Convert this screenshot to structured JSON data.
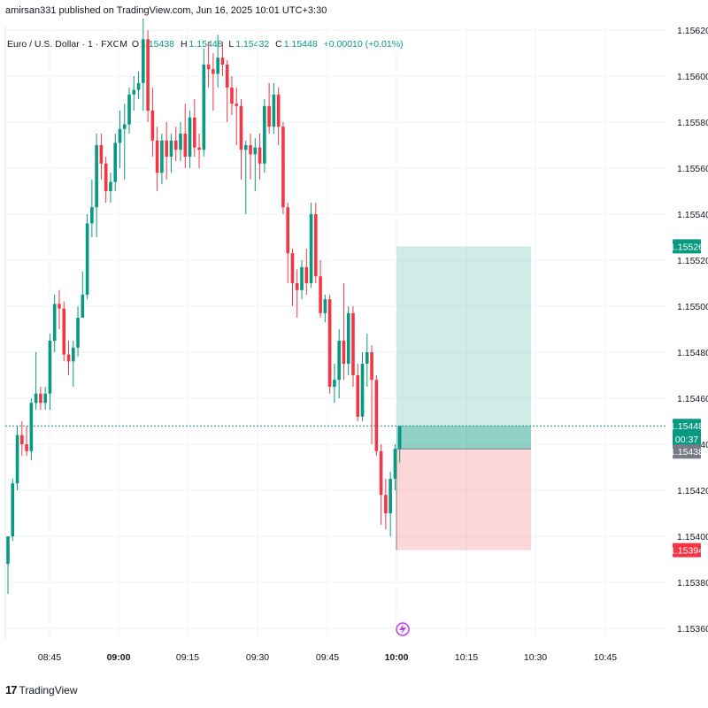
{
  "header": {
    "published": "amirsan331 published on TradingView.com, Jun 16, 2025 10:01 UTC+3:30"
  },
  "symbol": {
    "name": "Euro / U.S. Dollar · 1 · FXCM",
    "open_label": "O",
    "open": "1.15438",
    "high_label": "H",
    "high": "1.15448",
    "low_label": "L",
    "low": "1.15432",
    "close_label": "C",
    "close": "1.15448",
    "change": "+0.00010 (+0.01%)"
  },
  "brand": {
    "logo": "17",
    "name": "TradingView"
  },
  "colors": {
    "up": "#089981",
    "down": "#f23645",
    "grid": "#f0f3fa",
    "axis_text": "#131722",
    "target_zone": "rgba(8,153,129,0.19)",
    "stop_zone": "rgba(242,54,69,0.20)",
    "filled_zone": "rgba(8,153,129,0.32)",
    "open_tag": "#787b86"
  },
  "chart_data": {
    "type": "candlestick",
    "y_ticks": [
      "1.15620",
      "1.15600",
      "1.15580",
      "1.15560",
      "1.15540",
      "1.15520",
      "1.15500",
      "1.15480",
      "1.15460",
      "1.15440",
      "1.15420",
      "1.15400",
      "1.15380",
      "1.15360"
    ],
    "x_ticks": [
      "08:45",
      "09:00",
      "09:15",
      "09:30",
      "09:45",
      "10:00",
      "10:15",
      "10:30",
      "10:45"
    ],
    "bold_x_ticks": [
      "09:00",
      "10:00"
    ],
    "price_labels": {
      "target": "1.15526",
      "current": "1.15448",
      "countdown": "00:37",
      "open": "1.15438",
      "stop": "1.15394"
    },
    "position": {
      "type": "long",
      "entry": 1.15438,
      "target": 1.15526,
      "stop": 1.15394,
      "start_time": "10:00",
      "end_time": "10:29"
    },
    "candles": [
      {
        "o": 1.15388,
        "h": 1.154,
        "l": 1.15375,
        "c": 1.154
      },
      {
        "o": 1.154,
        "h": 1.15425,
        "l": 1.15398,
        "c": 1.15423
      },
      {
        "o": 1.15423,
        "h": 1.15448,
        "l": 1.1542,
        "c": 1.15444
      },
      {
        "o": 1.15444,
        "h": 1.1545,
        "l": 1.15435,
        "c": 1.1544
      },
      {
        "o": 1.1544,
        "h": 1.15448,
        "l": 1.15435,
        "c": 1.15437
      },
      {
        "o": 1.15437,
        "h": 1.1546,
        "l": 1.15433,
        "c": 1.15458
      },
      {
        "o": 1.15458,
        "h": 1.1548,
        "l": 1.15455,
        "c": 1.15462
      },
      {
        "o": 1.15462,
        "h": 1.15465,
        "l": 1.15455,
        "c": 1.15458
      },
      {
        "o": 1.15458,
        "h": 1.15465,
        "l": 1.15455,
        "c": 1.15462
      },
      {
        "o": 1.15462,
        "h": 1.15488,
        "l": 1.15455,
        "c": 1.15485
      },
      {
        "o": 1.15485,
        "h": 1.15505,
        "l": 1.1548,
        "c": 1.15501
      },
      {
        "o": 1.15501,
        "h": 1.15507,
        "l": 1.1549,
        "c": 1.15499
      },
      {
        "o": 1.15499,
        "h": 1.15502,
        "l": 1.15476,
        "c": 1.15479
      },
      {
        "o": 1.15479,
        "h": 1.15485,
        "l": 1.1547,
        "c": 1.15476
      },
      {
        "o": 1.15476,
        "h": 1.15485,
        "l": 1.15465,
        "c": 1.15482
      },
      {
        "o": 1.15482,
        "h": 1.155,
        "l": 1.15478,
        "c": 1.15495
      },
      {
        "o": 1.15495,
        "h": 1.15515,
        "l": 1.15495,
        "c": 1.15505
      },
      {
        "o": 1.15505,
        "h": 1.1554,
        "l": 1.15503,
        "c": 1.15536
      },
      {
        "o": 1.15536,
        "h": 1.15555,
        "l": 1.1553,
        "c": 1.15543
      },
      {
        "o": 1.15543,
        "h": 1.15575,
        "l": 1.1553,
        "c": 1.1557
      },
      {
        "o": 1.1557,
        "h": 1.15575,
        "l": 1.15555,
        "c": 1.15562
      },
      {
        "o": 1.15562,
        "h": 1.15565,
        "l": 1.15545,
        "c": 1.1555
      },
      {
        "o": 1.1555,
        "h": 1.15558,
        "l": 1.15545,
        "c": 1.15554
      },
      {
        "o": 1.15554,
        "h": 1.15575,
        "l": 1.1555,
        "c": 1.15571
      },
      {
        "o": 1.15571,
        "h": 1.15585,
        "l": 1.1556,
        "c": 1.15577
      },
      {
        "o": 1.15577,
        "h": 1.15588,
        "l": 1.15555,
        "c": 1.15579
      },
      {
        "o": 1.15579,
        "h": 1.15595,
        "l": 1.15575,
        "c": 1.15592
      },
      {
        "o": 1.15592,
        "h": 1.156,
        "l": 1.15585,
        "c": 1.15594
      },
      {
        "o": 1.15594,
        "h": 1.15602,
        "l": 1.1559,
        "c": 1.15597
      },
      {
        "o": 1.15597,
        "h": 1.15625,
        "l": 1.15585,
        "c": 1.15616
      },
      {
        "o": 1.15616,
        "h": 1.1562,
        "l": 1.1558,
        "c": 1.15585
      },
      {
        "o": 1.15585,
        "h": 1.15595,
        "l": 1.15565,
        "c": 1.15572
      },
      {
        "o": 1.15572,
        "h": 1.15578,
        "l": 1.1555,
        "c": 1.15558
      },
      {
        "o": 1.15558,
        "h": 1.15575,
        "l": 1.15553,
        "c": 1.15572
      },
      {
        "o": 1.15572,
        "h": 1.1558,
        "l": 1.15555,
        "c": 1.15565
      },
      {
        "o": 1.15565,
        "h": 1.15575,
        "l": 1.15558,
        "c": 1.15572
      },
      {
        "o": 1.15572,
        "h": 1.15578,
        "l": 1.15563,
        "c": 1.15568
      },
      {
        "o": 1.15568,
        "h": 1.1558,
        "l": 1.15563,
        "c": 1.15575
      },
      {
        "o": 1.15575,
        "h": 1.15588,
        "l": 1.1556,
        "c": 1.15565
      },
      {
        "o": 1.15565,
        "h": 1.15585,
        "l": 1.1556,
        "c": 1.15582
      },
      {
        "o": 1.15582,
        "h": 1.1559,
        "l": 1.15565,
        "c": 1.15569
      },
      {
        "o": 1.15569,
        "h": 1.15575,
        "l": 1.1556,
        "c": 1.15568
      },
      {
        "o": 1.15568,
        "h": 1.15612,
        "l": 1.15565,
        "c": 1.15605
      },
      {
        "o": 1.15605,
        "h": 1.15615,
        "l": 1.15595,
        "c": 1.15603
      },
      {
        "o": 1.15603,
        "h": 1.1561,
        "l": 1.15585,
        "c": 1.15601
      },
      {
        "o": 1.15601,
        "h": 1.15618,
        "l": 1.15595,
        "c": 1.15608
      },
      {
        "o": 1.15608,
        "h": 1.15615,
        "l": 1.156,
        "c": 1.15605
      },
      {
        "o": 1.15605,
        "h": 1.15607,
        "l": 1.1558,
        "c": 1.15595
      },
      {
        "o": 1.15595,
        "h": 1.156,
        "l": 1.15583,
        "c": 1.15588
      },
      {
        "o": 1.15588,
        "h": 1.15595,
        "l": 1.1557,
        "c": 1.15587
      },
      {
        "o": 1.15587,
        "h": 1.1559,
        "l": 1.15555,
        "c": 1.15568
      },
      {
        "o": 1.15568,
        "h": 1.15572,
        "l": 1.1554,
        "c": 1.1557
      },
      {
        "o": 1.1557,
        "h": 1.15575,
        "l": 1.15555,
        "c": 1.15566
      },
      {
        "o": 1.15566,
        "h": 1.15573,
        "l": 1.1555,
        "c": 1.15569
      },
      {
        "o": 1.15569,
        "h": 1.15575,
        "l": 1.15555,
        "c": 1.15562
      },
      {
        "o": 1.15562,
        "h": 1.1559,
        "l": 1.15558,
        "c": 1.15587
      },
      {
        "o": 1.15587,
        "h": 1.15597,
        "l": 1.15575,
        "c": 1.15578
      },
      {
        "o": 1.15578,
        "h": 1.15597,
        "l": 1.15575,
        "c": 1.15592
      },
      {
        "o": 1.15592,
        "h": 1.15595,
        "l": 1.1557,
        "c": 1.15578
      },
      {
        "o": 1.15578,
        "h": 1.1558,
        "l": 1.1554,
        "c": 1.15543
      },
      {
        "o": 1.15543,
        "h": 1.15545,
        "l": 1.1551,
        "c": 1.15523
      },
      {
        "o": 1.15523,
        "h": 1.15525,
        "l": 1.155,
        "c": 1.1551
      },
      {
        "o": 1.1551,
        "h": 1.15516,
        "l": 1.15495,
        "c": 1.15507
      },
      {
        "o": 1.15507,
        "h": 1.1552,
        "l": 1.15503,
        "c": 1.15517
      },
      {
        "o": 1.15517,
        "h": 1.15525,
        "l": 1.15505,
        "c": 1.1551
      },
      {
        "o": 1.1551,
        "h": 1.15545,
        "l": 1.15508,
        "c": 1.1554
      },
      {
        "o": 1.1554,
        "h": 1.15545,
        "l": 1.1551,
        "c": 1.15513
      },
      {
        "o": 1.15513,
        "h": 1.1552,
        "l": 1.15495,
        "c": 1.15497
      },
      {
        "o": 1.15497,
        "h": 1.15505,
        "l": 1.15493,
        "c": 1.15503
      },
      {
        "o": 1.15503,
        "h": 1.15505,
        "l": 1.15462,
        "c": 1.15465
      },
      {
        "o": 1.15465,
        "h": 1.15475,
        "l": 1.15458,
        "c": 1.15468
      },
      {
        "o": 1.15468,
        "h": 1.1549,
        "l": 1.1546,
        "c": 1.15485
      },
      {
        "o": 1.15485,
        "h": 1.1551,
        "l": 1.15468,
        "c": 1.15475
      },
      {
        "o": 1.15475,
        "h": 1.155,
        "l": 1.1547,
        "c": 1.15497
      },
      {
        "o": 1.15497,
        "h": 1.155,
        "l": 1.15465,
        "c": 1.1547
      },
      {
        "o": 1.1547,
        "h": 1.15475,
        "l": 1.1545,
        "c": 1.15452
      },
      {
        "o": 1.15452,
        "h": 1.1548,
        "l": 1.1545,
        "c": 1.15475
      },
      {
        "o": 1.15475,
        "h": 1.15488,
        "l": 1.15465,
        "c": 1.1548
      },
      {
        "o": 1.1548,
        "h": 1.15483,
        "l": 1.1544,
        "c": 1.15468
      },
      {
        "o": 1.15468,
        "h": 1.1547,
        "l": 1.15435,
        "c": 1.15437
      },
      {
        "o": 1.15437,
        "h": 1.1544,
        "l": 1.15405,
        "c": 1.15418
      },
      {
        "o": 1.15418,
        "h": 1.15425,
        "l": 1.15403,
        "c": 1.1541
      },
      {
        "o": 1.1541,
        "h": 1.15428,
        "l": 1.154,
        "c": 1.15425
      },
      {
        "o": 1.15425,
        "h": 1.1544,
        "l": 1.1542,
        "c": 1.15438
      },
      {
        "o": 1.15438,
        "h": 1.15448,
        "l": 1.15432,
        "c": 1.15448
      }
    ]
  }
}
